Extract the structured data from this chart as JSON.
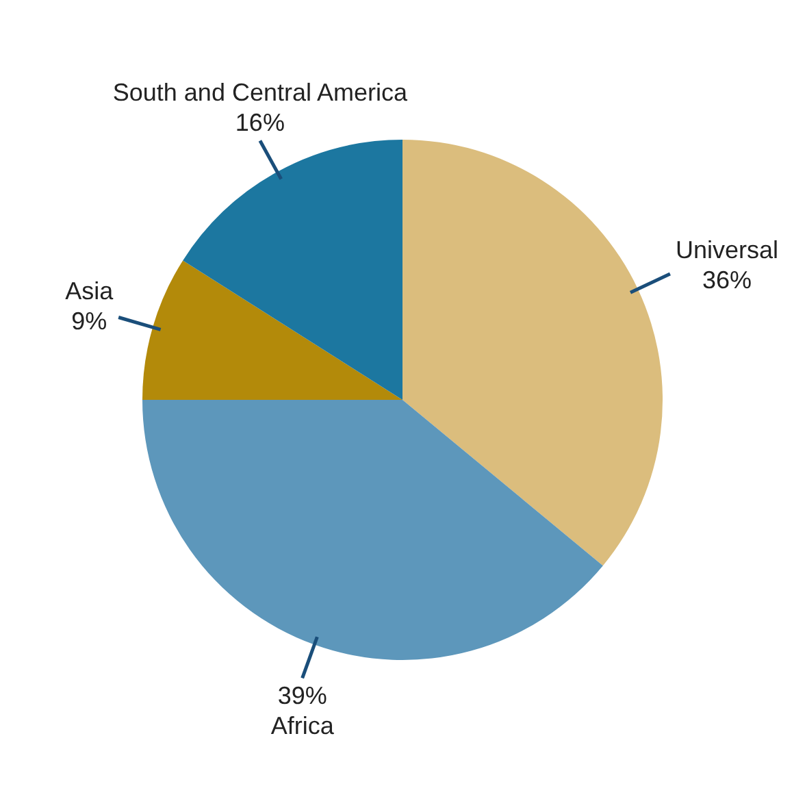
{
  "chart_data": {
    "type": "pie",
    "categories": [
      "Universal",
      "Africa",
      "Asia",
      "South and Central America"
    ],
    "values": [
      36,
      39,
      9,
      16
    ],
    "value_labels": [
      "36%",
      "39%",
      "9%",
      "16%"
    ],
    "colors": [
      "#dbbd7d",
      "#5d97bb",
      "#b38a0a",
      "#1c77a0"
    ],
    "legend": false
  }
}
